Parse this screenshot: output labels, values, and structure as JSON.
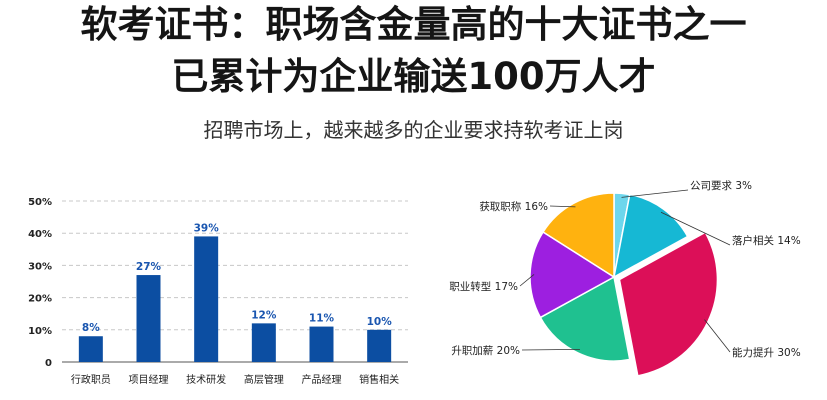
{
  "header": {
    "title_line1": "软考证书：职场含金量高的十大证书之一",
    "title_line2": "已累计为企业输送100万人才",
    "subtitle": "招聘市场上，越来越多的企业要求持软考证上岗"
  },
  "chart_data": [
    {
      "type": "bar",
      "categories": [
        "行政职员",
        "项目经理",
        "技术研发",
        "高层管理",
        "产品经理",
        "销售相关"
      ],
      "values": [
        8,
        27,
        39,
        12,
        11,
        10
      ],
      "data_labels": [
        "8%",
        "27%",
        "39%",
        "12%",
        "11%",
        "10%"
      ],
      "y_ticks": [
        "0",
        "10%",
        "20%",
        "30%",
        "40%",
        "50%"
      ],
      "ylim": [
        0,
        50
      ],
      "grid": true,
      "bar_color": "#0c4ea2",
      "label_color": "#1a56b0"
    },
    {
      "type": "pie",
      "categories": [
        "公司要求",
        "落户相关",
        "能力提升",
        "升职加薪",
        "职业转型",
        "获取职称"
      ],
      "values": [
        3,
        14,
        30,
        20,
        17,
        16
      ],
      "labels": [
        "公司要求  3%",
        "落户相关  14%",
        "能力提升  30%",
        "升职加薪  20%",
        "职业转型  17%",
        "获取职称  16%"
      ],
      "colors": [
        "#6dd6ec",
        "#16b8d4",
        "#dc0f58",
        "#1fc190",
        "#9d1fe0",
        "#ffb20f"
      ],
      "exploded": "能力提升"
    }
  ]
}
